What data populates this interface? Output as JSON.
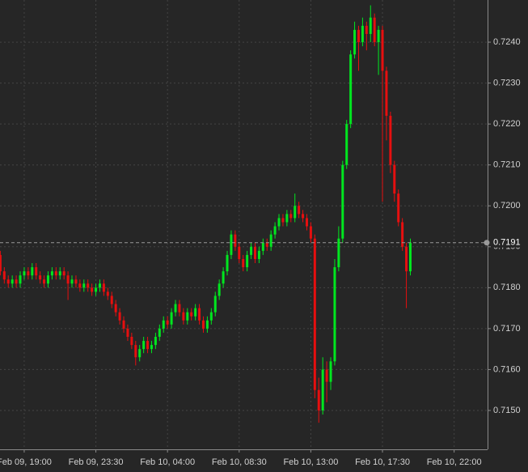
{
  "chart_data": {
    "type": "candlestick",
    "up_color": "#00e61f",
    "down_color": "#e60f0f",
    "grid": true,
    "xlim": [
      17.48,
      48.1
    ],
    "ylim": [
      0.71405,
      0.72503
    ],
    "xticks": [
      {
        "value": 19,
        "label": "Feb 09, 19:00"
      },
      {
        "value": 23.5,
        "label": "Feb 09, 23:30"
      },
      {
        "value": 28,
        "label": "Feb 10, 04:00"
      },
      {
        "value": 32.5,
        "label": "Feb 10, 08:30"
      },
      {
        "value": 37,
        "label": "Feb 10, 13:00"
      },
      {
        "value": 41.5,
        "label": "Feb 10, 17:30"
      },
      {
        "value": 46,
        "label": "Feb 10, 22:00"
      }
    ],
    "yticks": [
      {
        "value": 0.715,
        "label": "0.7150"
      },
      {
        "value": 0.716,
        "label": "0.7160"
      },
      {
        "value": 0.717,
        "label": "0.7170"
      },
      {
        "value": 0.718,
        "label": "0.7180"
      },
      {
        "value": 0.719,
        "label": "0.7190"
      },
      {
        "value": 0.72,
        "label": "0.7200"
      },
      {
        "value": 0.721,
        "label": "0.7210"
      },
      {
        "value": 0.722,
        "label": "0.7220"
      },
      {
        "value": 0.723,
        "label": "0.7230"
      },
      {
        "value": 0.724,
        "label": "0.7240"
      }
    ],
    "last_price": 0.7191,
    "x": [
      17.5,
      17.75,
      18,
      18.25,
      18.5,
      18.75,
      19,
      19.25,
      19.5,
      19.75,
      20,
      20.25,
      20.5,
      20.75,
      21,
      21.25,
      21.5,
      21.75,
      22,
      22.25,
      22.5,
      22.75,
      23,
      23.25,
      23.5,
      23.75,
      24,
      24.25,
      24.5,
      24.75,
      25,
      25.25,
      25.5,
      25.75,
      26,
      26.25,
      26.5,
      26.75,
      27,
      27.25,
      27.5,
      27.75,
      28,
      28.25,
      28.5,
      28.75,
      29,
      29.25,
      29.5,
      29.75,
      30,
      30.25,
      30.5,
      30.75,
      31,
      31.25,
      31.5,
      31.75,
      32,
      32.25,
      32.5,
      32.75,
      33,
      33.25,
      33.5,
      33.75,
      34,
      34.25,
      34.5,
      34.75,
      35,
      35.25,
      35.5,
      35.75,
      36,
      36.25,
      36.5,
      36.75,
      37,
      37.25,
      37.5,
      37.75,
      38,
      38.25,
      38.5,
      38.75,
      39,
      39.25,
      39.5,
      39.75,
      40,
      40.25,
      40.5,
      40.75,
      41,
      41.25,
      41.5,
      41.75,
      42,
      42.25,
      42.5,
      42.75,
      43,
      43.25
    ],
    "open": [
      0.7188,
      0.7184,
      0.7182,
      0.7181,
      0.7182,
      0.7181,
      0.7183,
      0.7184,
      0.7183,
      0.7185,
      0.7183,
      0.7182,
      0.7181,
      0.7183,
      0.7184,
      0.7183,
      0.7184,
      0.7183,
      0.7181,
      0.7182,
      0.7181,
      0.718,
      0.7181,
      0.718,
      0.7179,
      0.718,
      0.7181,
      0.7179,
      0.7178,
      0.7176,
      0.7174,
      0.7172,
      0.717,
      0.7168,
      0.7166,
      0.7163,
      0.7165,
      0.7167,
      0.7165,
      0.7166,
      0.7168,
      0.717,
      0.7172,
      0.7171,
      0.7174,
      0.7176,
      0.7174,
      0.7172,
      0.7174,
      0.7173,
      0.7175,
      0.7172,
      0.717,
      0.7172,
      0.7174,
      0.7178,
      0.7181,
      0.7184,
      0.7188,
      0.7193,
      0.719,
      0.7187,
      0.7185,
      0.7188,
      0.719,
      0.7187,
      0.7189,
      0.7191,
      0.719,
      0.7193,
      0.7195,
      0.7197,
      0.7196,
      0.7198,
      0.7197,
      0.72,
      0.7198,
      0.7197,
      0.7195,
      0.7192,
      0.7155,
      0.715,
      0.716,
      0.7157,
      0.7162,
      0.7185,
      0.7192,
      0.721,
      0.722,
      0.7237,
      0.7243,
      0.724,
      0.7244,
      0.7242,
      0.7246,
      0.724,
      0.7243,
      0.7233,
      0.7222,
      0.721,
      0.7203,
      0.7196,
      0.719,
      0.7184
    ],
    "high": [
      0.7189,
      0.7185,
      0.7183,
      0.7183,
      0.7183,
      0.7184,
      0.7185,
      0.7185,
      0.7186,
      0.7186,
      0.7184,
      0.7183,
      0.7184,
      0.7185,
      0.7185,
      0.7185,
      0.7185,
      0.7184,
      0.7183,
      0.7183,
      0.7182,
      0.7182,
      0.7182,
      0.7181,
      0.7181,
      0.7182,
      0.7182,
      0.718,
      0.7179,
      0.7177,
      0.7175,
      0.7173,
      0.7171,
      0.7169,
      0.7167,
      0.7166,
      0.7168,
      0.7168,
      0.7167,
      0.7169,
      0.7171,
      0.7173,
      0.7173,
      0.7175,
      0.7177,
      0.7177,
      0.7175,
      0.7175,
      0.7175,
      0.7176,
      0.7176,
      0.7173,
      0.7173,
      0.7175,
      0.7179,
      0.7182,
      0.7185,
      0.7189,
      0.7194,
      0.7194,
      0.7191,
      0.7188,
      0.7189,
      0.7191,
      0.7191,
      0.719,
      0.7192,
      0.7192,
      0.7194,
      0.7196,
      0.7198,
      0.7198,
      0.7199,
      0.7199,
      0.7203,
      0.7201,
      0.7199,
      0.7198,
      0.7196,
      0.7193,
      0.7158,
      0.7163,
      0.7162,
      0.7163,
      0.7187,
      0.7195,
      0.7211,
      0.7221,
      0.7238,
      0.7245,
      0.7244,
      0.7246,
      0.7245,
      0.7249,
      0.7247,
      0.7244,
      0.7244,
      0.7234,
      0.7223,
      0.7211,
      0.7204,
      0.7197,
      0.7191,
      0.7192
    ],
    "low": [
      0.7183,
      0.7181,
      0.718,
      0.718,
      0.718,
      0.718,
      0.7182,
      0.7182,
      0.7182,
      0.7182,
      0.7181,
      0.718,
      0.718,
      0.7182,
      0.7182,
      0.7182,
      0.7182,
      0.7177,
      0.718,
      0.718,
      0.7179,
      0.7179,
      0.7179,
      0.7178,
      0.7178,
      0.7179,
      0.7178,
      0.7177,
      0.7175,
      0.7173,
      0.7171,
      0.7169,
      0.7167,
      0.7165,
      0.7161,
      0.7162,
      0.7164,
      0.7164,
      0.7164,
      0.7165,
      0.7167,
      0.7169,
      0.717,
      0.717,
      0.7173,
      0.7173,
      0.7171,
      0.7171,
      0.7172,
      0.7172,
      0.7171,
      0.7169,
      0.7169,
      0.7171,
      0.7173,
      0.7177,
      0.718,
      0.7183,
      0.7187,
      0.7189,
      0.7186,
      0.7184,
      0.7184,
      0.7187,
      0.7186,
      0.7186,
      0.7188,
      0.7189,
      0.7189,
      0.7192,
      0.7194,
      0.7195,
      0.7195,
      0.7196,
      0.7196,
      0.7197,
      0.7196,
      0.7194,
      0.7191,
      0.7153,
      0.7147,
      0.7149,
      0.7152,
      0.7155,
      0.7161,
      0.7184,
      0.7191,
      0.7209,
      0.7219,
      0.7236,
      0.7233,
      0.7239,
      0.7238,
      0.724,
      0.7239,
      0.7232,
      0.7201,
      0.7216,
      0.7208,
      0.7201,
      0.7195,
      0.7189,
      0.7175,
      0.7183
    ],
    "close": [
      0.7184,
      0.7182,
      0.7181,
      0.7182,
      0.7181,
      0.7183,
      0.7184,
      0.7183,
      0.7185,
      0.7183,
      0.7182,
      0.7181,
      0.7183,
      0.7184,
      0.7183,
      0.7184,
      0.7183,
      0.7181,
      0.7182,
      0.7181,
      0.718,
      0.7181,
      0.718,
      0.7179,
      0.718,
      0.7181,
      0.7179,
      0.7178,
      0.7176,
      0.7174,
      0.7172,
      0.717,
      0.7168,
      0.7166,
      0.7163,
      0.7165,
      0.7167,
      0.7165,
      0.7166,
      0.7168,
      0.717,
      0.7172,
      0.7171,
      0.7174,
      0.7176,
      0.7174,
      0.7172,
      0.7174,
      0.7173,
      0.7175,
      0.7172,
      0.717,
      0.7172,
      0.7174,
      0.7178,
      0.7181,
      0.7184,
      0.7188,
      0.7193,
      0.719,
      0.7187,
      0.7185,
      0.7188,
      0.719,
      0.7187,
      0.7189,
      0.7191,
      0.719,
      0.7193,
      0.7195,
      0.7197,
      0.7196,
      0.7198,
      0.7197,
      0.72,
      0.7198,
      0.7197,
      0.7195,
      0.7192,
      0.7155,
      0.715,
      0.716,
      0.7157,
      0.7162,
      0.7185,
      0.7192,
      0.721,
      0.722,
      0.7237,
      0.7243,
      0.724,
      0.7244,
      0.7242,
      0.7246,
      0.724,
      0.7243,
      0.7233,
      0.7222,
      0.721,
      0.7203,
      0.7196,
      0.719,
      0.7184,
      0.7191
    ]
  }
}
